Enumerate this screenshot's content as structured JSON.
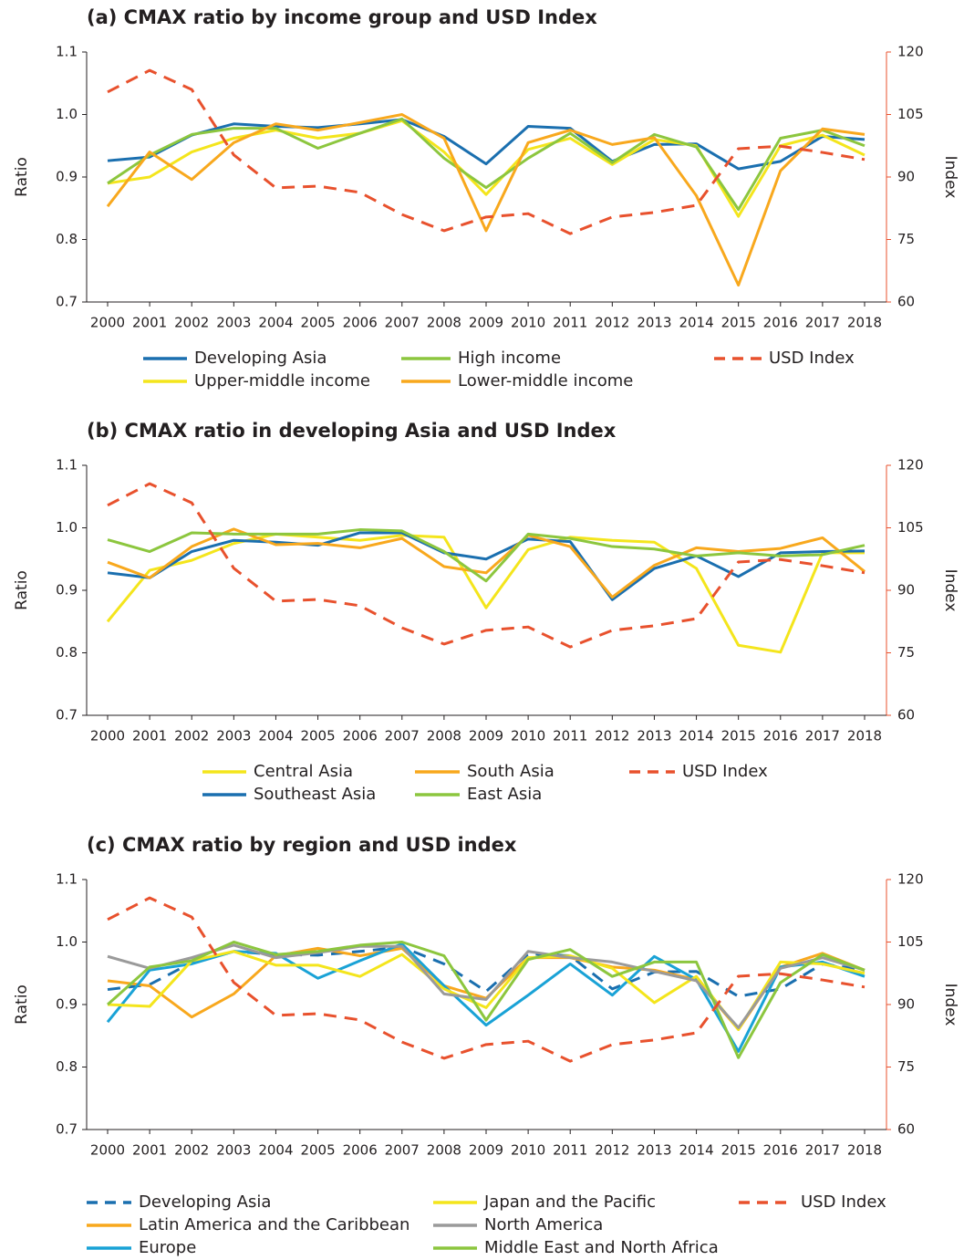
{
  "chart_data": [
    {
      "type": "line",
      "title": "(a)  CMAX ratio by income group and USD Index",
      "y_label": "Ratio",
      "y2_label": "Index",
      "categories": [
        "2000",
        "2001",
        "2002",
        "2003",
        "2004",
        "2005",
        "2006",
        "2007",
        "2008",
        "2009",
        "2010",
        "2011",
        "2012",
        "2013",
        "2014",
        "2015",
        "2016",
        "2017",
        "2018"
      ],
      "ylim": [
        0.7,
        1.1
      ],
      "yticks": [
        0.7,
        0.8,
        0.9,
        {
          "value": 1,
          "label": "1.0"
        },
        1.1
      ],
      "y2lim": [
        60,
        120
      ],
      "y2ticks": [
        60,
        75,
        90,
        105,
        120
      ],
      "series": [
        {
          "name": "Developing Asia",
          "color": "#1a6faf",
          "values": [
            0.926,
            0.932,
            0.967,
            0.985,
            0.981,
            0.979,
            0.985,
            0.992,
            0.965,
            0.921,
            0.981,
            0.978,
            0.925,
            0.952,
            0.953,
            0.913,
            0.925,
            0.965,
            0.96
          ]
        },
        {
          "name": "Upper-middle income",
          "color": "#f4e51c",
          "values": [
            0.89,
            0.9,
            0.94,
            0.962,
            0.975,
            0.962,
            0.97,
            0.99,
            0.94,
            0.872,
            0.944,
            0.962,
            0.92,
            0.96,
            0.95,
            0.837,
            0.95,
            0.967,
            0.935
          ]
        },
        {
          "name": "High income",
          "color": "#8cc63e",
          "values": [
            0.89,
            0.935,
            0.968,
            0.978,
            0.978,
            0.946,
            0.97,
            0.993,
            0.93,
            0.883,
            0.93,
            0.97,
            0.923,
            0.968,
            0.948,
            0.848,
            0.962,
            0.975,
            0.95
          ]
        },
        {
          "name": "Lower-middle income",
          "color": "#f8a81d",
          "values": [
            0.853,
            0.94,
            0.896,
            0.955,
            0.985,
            0.975,
            0.987,
            1.0,
            0.962,
            0.814,
            0.955,
            0.975,
            0.952,
            0.963,
            0.87,
            0.727,
            0.91,
            0.977,
            0.968
          ]
        },
        {
          "name": "USD Index",
          "color": "#e8512d",
          "linestyle": "dashed",
          "axis": "y2",
          "values": [
            110.4,
            115.6,
            111.0,
            95.3,
            87.4,
            87.8,
            86.3,
            81.0,
            77.1,
            80.4,
            81.2,
            76.4,
            80.4,
            81.5,
            83.2,
            96.8,
            97.4,
            95.9,
            94.2
          ]
        }
      ]
    },
    {
      "type": "line",
      "title": "(b)  CMAX ratio in developing Asia and USD Index",
      "y_label": "Ratio",
      "y2_label": "Index",
      "categories": [
        "2000",
        "2001",
        "2002",
        "2003",
        "2004",
        "2005",
        "2006",
        "2007",
        "2008",
        "2009",
        "2010",
        "2011",
        "2012",
        "2013",
        "2014",
        "2015",
        "2016",
        "2017",
        "2018"
      ],
      "ylim": [
        0.7,
        1.1
      ],
      "yticks": [
        0.7,
        0.8,
        0.9,
        {
          "value": 1,
          "label": "1.0"
        },
        1.1
      ],
      "y2lim": [
        60,
        120
      ],
      "y2ticks": [
        60,
        75,
        90,
        105,
        120
      ],
      "series": [
        {
          "name": "Central Asia",
          "color": "#f4e51c",
          "values": [
            0.85,
            0.932,
            0.948,
            0.975,
            0.99,
            0.985,
            0.98,
            0.988,
            0.985,
            0.872,
            0.965,
            0.985,
            0.98,
            0.977,
            0.935,
            0.812,
            0.801,
            0.96,
            0.96
          ]
        },
        {
          "name": "Southeast Asia",
          "color": "#1a6faf",
          "values": [
            0.928,
            0.92,
            0.962,
            0.98,
            0.977,
            0.972,
            0.992,
            0.992,
            0.96,
            0.95,
            0.982,
            0.978,
            0.885,
            0.935,
            0.955,
            0.922,
            0.96,
            0.962,
            0.963
          ]
        },
        {
          "name": "South Asia",
          "color": "#f8a81d",
          "values": [
            0.945,
            0.92,
            0.97,
            0.998,
            0.973,
            0.975,
            0.968,
            0.983,
            0.938,
            0.928,
            0.988,
            0.97,
            0.889,
            0.94,
            0.968,
            0.962,
            0.967,
            0.984,
            0.93
          ]
        },
        {
          "name": "East Asia",
          "color": "#8cc63e",
          "values": [
            0.981,
            0.962,
            0.992,
            0.99,
            0.99,
            0.99,
            0.997,
            0.995,
            0.962,
            0.915,
            0.99,
            0.983,
            0.97,
            0.966,
            0.955,
            0.96,
            0.955,
            0.957,
            0.972
          ]
        },
        {
          "name": "USD Index",
          "color": "#e8512d",
          "linestyle": "dashed",
          "axis": "y2",
          "values": [
            110.4,
            115.6,
            111.0,
            95.3,
            87.4,
            87.8,
            86.3,
            81.0,
            77.1,
            80.4,
            81.2,
            76.4,
            80.4,
            81.5,
            83.2,
            96.8,
            97.4,
            95.9,
            94.2
          ]
        }
      ]
    },
    {
      "type": "line",
      "title": "(c)  CMAX ratio by region and USD index",
      "y_label": "Ratio",
      "y2_label": "Index",
      "categories": [
        "2000",
        "2001",
        "2002",
        "2003",
        "2004",
        "2005",
        "2006",
        "2007",
        "2008",
        "2009",
        "2010",
        "2011",
        "2012",
        "2013",
        "2014",
        "2015",
        "2016",
        "2017",
        "2018"
      ],
      "ylim": [
        0.7,
        1.1
      ],
      "yticks": [
        0.7,
        0.8,
        0.9,
        {
          "value": 1,
          "label": "1.0"
        },
        1.1
      ],
      "y2lim": [
        60,
        120
      ],
      "y2ticks": [
        60,
        75,
        90,
        105,
        120
      ],
      "series": [
        {
          "name": "Developing Asia",
          "color": "#1a6faf",
          "linestyle": "dashed",
          "values": [
            0.924,
            0.932,
            0.967,
            0.985,
            0.98,
            0.979,
            0.985,
            0.992,
            0.965,
            0.921,
            0.981,
            0.978,
            0.925,
            0.952,
            0.953,
            0.913,
            0.925,
            0.965,
            0.955
          ]
        },
        {
          "name": "Latin America and the Caribbean",
          "color": "#f8a81d",
          "values": [
            0.938,
            0.93,
            0.88,
            0.917,
            0.978,
            0.99,
            0.978,
            0.99,
            0.93,
            0.91,
            0.975,
            0.975,
            0.96,
            0.955,
            0.94,
            0.86,
            0.96,
            0.982,
            0.955
          ]
        },
        {
          "name": "Europe",
          "color": "#19a2d6",
          "values": [
            0.872,
            0.955,
            0.965,
            0.985,
            0.982,
            0.942,
            0.97,
            0.997,
            0.93,
            0.867,
            0.915,
            0.965,
            0.915,
            0.977,
            0.94,
            0.825,
            0.96,
            0.968,
            0.945
          ]
        },
        {
          "name": "Japan and the Pacific",
          "color": "#f4e51c",
          "values": [
            0.9,
            0.897,
            0.97,
            0.985,
            0.963,
            0.963,
            0.945,
            0.98,
            0.925,
            0.895,
            0.975,
            0.978,
            0.958,
            0.903,
            0.945,
            0.86,
            0.968,
            0.965,
            0.95
          ]
        },
        {
          "name": "North America",
          "color": "#9a9a9a",
          "values": [
            0.977,
            0.958,
            0.975,
            0.995,
            0.975,
            0.983,
            0.993,
            0.993,
            0.917,
            0.908,
            0.985,
            0.975,
            0.968,
            0.953,
            0.938,
            0.863,
            0.958,
            0.975,
            0.955
          ]
        },
        {
          "name": "Middle East and North Africa",
          "color": "#8cc63e",
          "values": [
            0.9,
            0.96,
            0.97,
            1.0,
            0.98,
            0.985,
            0.995,
            1.0,
            0.978,
            0.875,
            0.972,
            0.988,
            0.945,
            0.968,
            0.968,
            0.815,
            0.935,
            0.98,
            0.955
          ]
        },
        {
          "name": "USD Index",
          "color": "#e8512d",
          "linestyle": "dashed",
          "axis": "y2",
          "values": [
            110.4,
            115.6,
            111.0,
            95.3,
            87.4,
            87.8,
            86.3,
            81.0,
            77.1,
            80.4,
            81.2,
            76.4,
            80.4,
            81.5,
            83.2,
            96.8,
            97.4,
            95.9,
            94.2
          ]
        }
      ]
    }
  ]
}
